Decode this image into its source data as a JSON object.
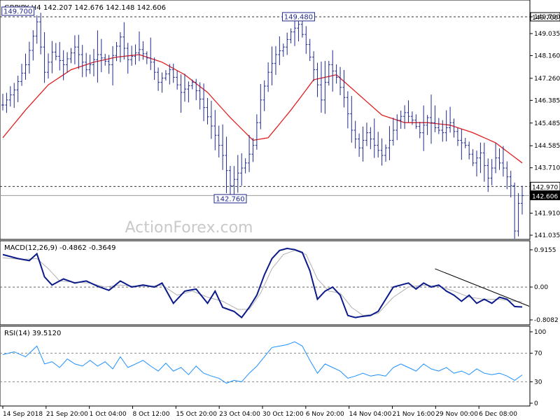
{
  "colors": {
    "background": "#ffffff",
    "grid": "#c8c8c8",
    "axis": "#000000",
    "bars": "#1f2a8c",
    "ma": "#e02020",
    "macd_line": "#0a1a8a",
    "macd_signal": "#b0b0b0",
    "rsi": "#1e90ff",
    "watermark": "#c9c9c9",
    "price_tag_bg": "#000000",
    "price_tag_text": "#ffffff"
  },
  "chart_data": [
    {
      "type": "ohlc-bar",
      "title": "GBPJPY,H4",
      "ohlc_header": "142.207 142.676 142.148 142.606",
      "watermark": "ActionForex.com",
      "yticks": [
        149.7,
        149.035,
        148.16,
        147.26,
        146.385,
        145.485,
        144.585,
        143.71,
        142.97,
        142.606,
        141.91,
        141.035
      ],
      "ytick_labels": [
        "149.700",
        "149.035",
        "148.160",
        "147.260",
        "146.385",
        "145.485",
        "144.585",
        "143.710",
        "142.970",
        "142.606",
        "141.910",
        "141.035"
      ],
      "ylim": [
        141.035,
        150.2
      ],
      "levels": [
        {
          "value": 149.7,
          "label": "149.700",
          "style": "dashed"
        },
        {
          "value": 142.97,
          "label": "142.970",
          "style": "dashed"
        },
        {
          "value": 142.606,
          "label": "142.606",
          "style": "solid"
        }
      ],
      "annotations": [
        {
          "text": "149.700",
          "at_index": 4,
          "value": 149.7
        },
        {
          "text": "149.480",
          "at_index": 78,
          "value": 149.48
        },
        {
          "text": "142.760",
          "at_index": 60,
          "value": 142.76
        }
      ],
      "close_anchors": [
        [
          0,
          146.2
        ],
        [
          3,
          146.8
        ],
        [
          6,
          147.8
        ],
        [
          9,
          149.5
        ],
        [
          11,
          147.5
        ],
        [
          13,
          148.3
        ],
        [
          16,
          147.8
        ],
        [
          19,
          148.5
        ],
        [
          22,
          147.6
        ],
        [
          25,
          148.2
        ],
        [
          28,
          147.8
        ],
        [
          31,
          148.9
        ],
        [
          33,
          148.0
        ],
        [
          36,
          148.4
        ],
        [
          39,
          147.9
        ],
        [
          41,
          147.1
        ],
        [
          44,
          147.6
        ],
        [
          47,
          146.7
        ],
        [
          50,
          147.1
        ],
        [
          53,
          146.1
        ],
        [
          56,
          145.0
        ],
        [
          58,
          144.2
        ],
        [
          60,
          143.0
        ],
        [
          62,
          143.5
        ],
        [
          64,
          143.9
        ],
        [
          66,
          144.6
        ],
        [
          68,
          146.4
        ],
        [
          70,
          147.5
        ],
        [
          72,
          148.2
        ],
        [
          74,
          148.5
        ],
        [
          76,
          149.1
        ],
        [
          78,
          149.4
        ],
        [
          80,
          148.6
        ],
        [
          82,
          147.6
        ],
        [
          84,
          146.4
        ],
        [
          86,
          147.8
        ],
        [
          88,
          147.3
        ],
        [
          90,
          146.5
        ],
        [
          92,
          145.2
        ],
        [
          94,
          144.5
        ],
        [
          96,
          145.1
        ],
        [
          98,
          144.6
        ],
        [
          100,
          144.2
        ],
        [
          102,
          144.8
        ],
        [
          104,
          145.6
        ],
        [
          106,
          145.9
        ],
        [
          108,
          145.6
        ],
        [
          110,
          145.1
        ],
        [
          112,
          145.7
        ],
        [
          114,
          145.3
        ],
        [
          116,
          145.1
        ],
        [
          118,
          145.5
        ],
        [
          120,
          144.8
        ],
        [
          122,
          144.6
        ],
        [
          124,
          143.9
        ],
        [
          126,
          144.3
        ],
        [
          128,
          143.3
        ],
        [
          130,
          144.1
        ],
        [
          132,
          143.7
        ],
        [
          134,
          143.0
        ],
        [
          135,
          141.2
        ],
        [
          136,
          142.3
        ],
        [
          137,
          142.606
        ]
      ],
      "ma_anchors": [
        [
          0,
          144.9
        ],
        [
          6,
          146.0
        ],
        [
          12,
          147.0
        ],
        [
          18,
          147.6
        ],
        [
          24,
          147.9
        ],
        [
          30,
          148.1
        ],
        [
          36,
          148.2
        ],
        [
          42,
          147.9
        ],
        [
          48,
          147.4
        ],
        [
          54,
          146.7
        ],
        [
          60,
          145.7
        ],
        [
          66,
          144.8
        ],
        [
          70,
          144.9
        ],
        [
          76,
          146.0
        ],
        [
          82,
          147.2
        ],
        [
          88,
          147.4
        ],
        [
          94,
          146.6
        ],
        [
          100,
          145.8
        ],
        [
          106,
          145.5
        ],
        [
          112,
          145.5
        ],
        [
          118,
          145.4
        ],
        [
          124,
          145.1
        ],
        [
          130,
          144.7
        ],
        [
          137,
          143.9
        ]
      ]
    },
    {
      "type": "line",
      "title": "MACD(12,26,9) -0.4862 -0.3649",
      "yticks": [
        0.9155,
        0.0,
        -0.8082
      ],
      "ytick_labels": [
        "0.9155",
        "0.00",
        "-0.8082"
      ],
      "ylim": [
        -0.86,
        1.0
      ],
      "series": [
        {
          "anchors": [
            [
              0,
              0.8
            ],
            [
              4,
              0.7
            ],
            [
              7,
              0.65
            ],
            [
              9,
              0.82
            ],
            [
              11,
              0.25
            ],
            [
              13,
              0.05
            ],
            [
              16,
              0.2
            ],
            [
              19,
              0.1
            ],
            [
              22,
              0.15
            ],
            [
              25,
              0.02
            ],
            [
              28,
              -0.08
            ],
            [
              31,
              0.15
            ],
            [
              34,
              0.0
            ],
            [
              37,
              0.05
            ],
            [
              40,
              0.0
            ],
            [
              42,
              0.1
            ],
            [
              45,
              -0.4
            ],
            [
              48,
              -0.1
            ],
            [
              51,
              -0.05
            ],
            [
              54,
              -0.4
            ],
            [
              56,
              -0.1
            ],
            [
              58,
              -0.5
            ],
            [
              61,
              -0.6
            ],
            [
              63,
              -0.75
            ],
            [
              65,
              -0.5
            ],
            [
              67,
              -0.2
            ],
            [
              69,
              0.3
            ],
            [
              71,
              0.7
            ],
            [
              73,
              0.9
            ],
            [
              75,
              0.95
            ],
            [
              77,
              0.92
            ],
            [
              79,
              0.85
            ],
            [
              81,
              0.4
            ],
            [
              83,
              -0.3
            ],
            [
              85,
              -0.1
            ],
            [
              87,
              0.0
            ],
            [
              89,
              -0.2
            ],
            [
              91,
              -0.7
            ],
            [
              93,
              -0.75
            ],
            [
              95,
              -0.72
            ],
            [
              97,
              -0.7
            ],
            [
              99,
              -0.6
            ],
            [
              101,
              -0.3
            ],
            [
              103,
              0.0
            ],
            [
              105,
              0.05
            ],
            [
              107,
              0.1
            ],
            [
              109,
              -0.05
            ],
            [
              111,
              0.1
            ],
            [
              113,
              0.0
            ],
            [
              115,
              0.05
            ],
            [
              117,
              -0.1
            ],
            [
              119,
              -0.2
            ],
            [
              121,
              -0.35
            ],
            [
              123,
              -0.2
            ],
            [
              125,
              -0.4
            ],
            [
              127,
              -0.3
            ],
            [
              129,
              -0.4
            ],
            [
              131,
              -0.25
            ],
            [
              133,
              -0.3
            ],
            [
              135,
              -0.48
            ],
            [
              137,
              -0.49
            ]
          ]
        },
        {
          "anchors": [
            [
              0,
              0.72
            ],
            [
              5,
              0.68
            ],
            [
              9,
              0.7
            ],
            [
              12,
              0.45
            ],
            [
              15,
              0.15
            ],
            [
              19,
              0.12
            ],
            [
              23,
              0.1
            ],
            [
              27,
              0.0
            ],
            [
              31,
              0.05
            ],
            [
              35,
              0.02
            ],
            [
              39,
              0.02
            ],
            [
              42,
              0.05
            ],
            [
              46,
              -0.2
            ],
            [
              50,
              -0.1
            ],
            [
              54,
              -0.25
            ],
            [
              58,
              -0.35
            ],
            [
              62,
              -0.55
            ],
            [
              65,
              -0.55
            ],
            [
              68,
              -0.15
            ],
            [
              71,
              0.45
            ],
            [
              74,
              0.8
            ],
            [
              77,
              0.9
            ],
            [
              80,
              0.8
            ],
            [
              83,
              0.2
            ],
            [
              86,
              -0.1
            ],
            [
              89,
              -0.15
            ],
            [
              92,
              -0.5
            ],
            [
              95,
              -0.7
            ],
            [
              99,
              -0.65
            ],
            [
              103,
              -0.25
            ],
            [
              107,
              0.0
            ],
            [
              111,
              0.05
            ],
            [
              115,
              0.02
            ],
            [
              119,
              -0.1
            ],
            [
              123,
              -0.25
            ],
            [
              127,
              -0.3
            ],
            [
              131,
              -0.3
            ],
            [
              135,
              -0.35
            ],
            [
              137,
              -0.36
            ]
          ]
        }
      ],
      "trendline": {
        "from": [
          114,
          0.45
        ],
        "to": [
          137,
          -0.3
        ]
      }
    },
    {
      "type": "line",
      "title": "RSI(14) 39.5120",
      "yticks": [
        100,
        70,
        30,
        0
      ],
      "ytick_labels": [
        "100",
        "70",
        "30",
        "0"
      ],
      "ylim": [
        0,
        100
      ],
      "dashed_levels": [
        70,
        30
      ],
      "series": [
        {
          "anchors": [
            [
              0,
              68
            ],
            [
              3,
              72
            ],
            [
              6,
              65
            ],
            [
              9,
              80
            ],
            [
              11,
              55
            ],
            [
              13,
              58
            ],
            [
              15,
              50
            ],
            [
              17,
              62
            ],
            [
              19,
              55
            ],
            [
              21,
              52
            ],
            [
              23,
              60
            ],
            [
              25,
              52
            ],
            [
              27,
              58
            ],
            [
              29,
              48
            ],
            [
              31,
              65
            ],
            [
              33,
              50
            ],
            [
              35,
              55
            ],
            [
              37,
              60
            ],
            [
              39,
              52
            ],
            [
              41,
              45
            ],
            [
              43,
              56
            ],
            [
              45,
              45
            ],
            [
              47,
              50
            ],
            [
              49,
              40
            ],
            [
              51,
              52
            ],
            [
              53,
              42
            ],
            [
              55,
              38
            ],
            [
              57,
              35
            ],
            [
              59,
              28
            ],
            [
              61,
              32
            ],
            [
              63,
              30
            ],
            [
              65,
              42
            ],
            [
              67,
              52
            ],
            [
              69,
              65
            ],
            [
              71,
              78
            ],
            [
              73,
              80
            ],
            [
              75,
              82
            ],
            [
              77,
              86
            ],
            [
              79,
              80
            ],
            [
              81,
              60
            ],
            [
              83,
              42
            ],
            [
              85,
              55
            ],
            [
              87,
              50
            ],
            [
              89,
              45
            ],
            [
              91,
              35
            ],
            [
              93,
              38
            ],
            [
              95,
              42
            ],
            [
              97,
              38
            ],
            [
              99,
              40
            ],
            [
              101,
              38
            ],
            [
              103,
              50
            ],
            [
              105,
              55
            ],
            [
              107,
              50
            ],
            [
              109,
              45
            ],
            [
              111,
              55
            ],
            [
              113,
              48
            ],
            [
              115,
              45
            ],
            [
              117,
              50
            ],
            [
              119,
              42
            ],
            [
              121,
              45
            ],
            [
              123,
              40
            ],
            [
              125,
              48
            ],
            [
              127,
              42
            ],
            [
              129,
              40
            ],
            [
              131,
              42
            ],
            [
              133,
              38
            ],
            [
              135,
              32
            ],
            [
              137,
              39.5
            ]
          ]
        }
      ]
    }
  ],
  "x_axis": {
    "tick_labels": [
      "14 Sep 2018",
      "21 Sep 20:00",
      "1 Oct 04:00",
      "8 Oct 12:00",
      "15 Oct 20:00",
      "23 Oct 04:00",
      "30 Oct 12:00",
      "6 Nov 20:00",
      "14 Nov 04:00",
      "21 Nov 16:00",
      "29 Nov 00:00",
      "6 Dec 08:00"
    ]
  }
}
